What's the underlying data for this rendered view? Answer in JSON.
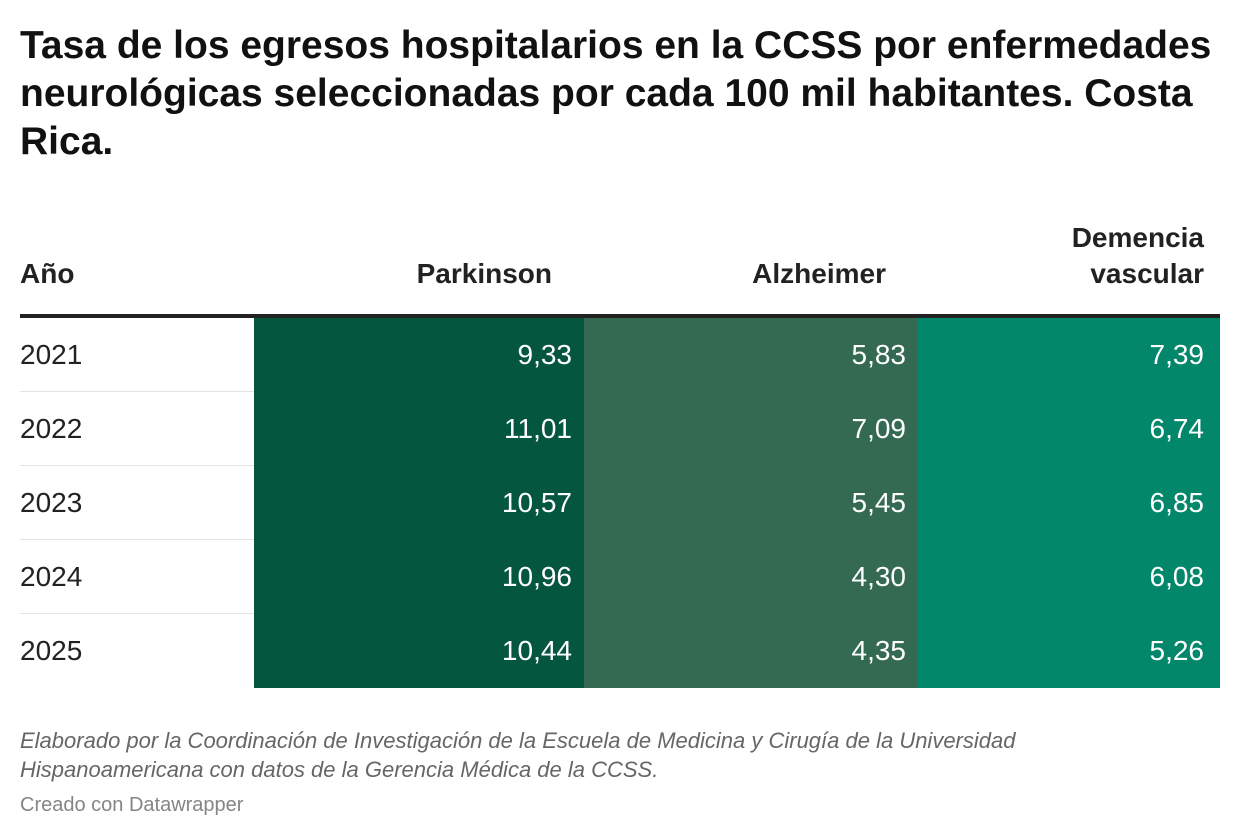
{
  "title": "Tasa de los egresos hospitalarios en la CCSS por enfermedades neurológicas seleccionadas por cada 100 mil habitantes. Costa Rica.",
  "colors": {
    "parkinson": "#04563e",
    "alzheimer": "#336a51",
    "demencia_vascular": "#02876b"
  },
  "chart_data": {
    "type": "table",
    "title": "Tasa de los egresos hospitalarios en la CCSS por enfermedades neurológicas seleccionadas por cada 100 mil habitantes. Costa Rica.",
    "columns": [
      "Año",
      "Parkinson",
      "Alzheimer",
      "Demencia vascular"
    ],
    "header_lines": {
      "year": "Año",
      "parkinson": "Parkinson",
      "alzheimer": "Alzheimer",
      "dem_line1": "Demencia",
      "dem_line2": "vascular"
    },
    "rows": [
      {
        "year": "2021",
        "parkinson": "9,33",
        "alzheimer": "5,83",
        "demencia": "7,39"
      },
      {
        "year": "2022",
        "parkinson": "11,01",
        "alzheimer": "7,09",
        "demencia": "6,74"
      },
      {
        "year": "2023",
        "parkinson": "10,57",
        "alzheimer": "5,45",
        "demencia": "6,85"
      },
      {
        "year": "2024",
        "parkinson": "10,96",
        "alzheimer": "4,30",
        "demencia": "6,08"
      },
      {
        "year": "2025",
        "parkinson": "10,44",
        "alzheimer": "4,35",
        "demencia": "5,26"
      }
    ]
  },
  "notes": "Elaborado por la Coordinación de Investigación de la Escuela de Medicina y Cirugía de la Universidad Hispanoamericana con datos de la Gerencia Médica de la CCSS.",
  "credit": "Creado con Datawrapper"
}
